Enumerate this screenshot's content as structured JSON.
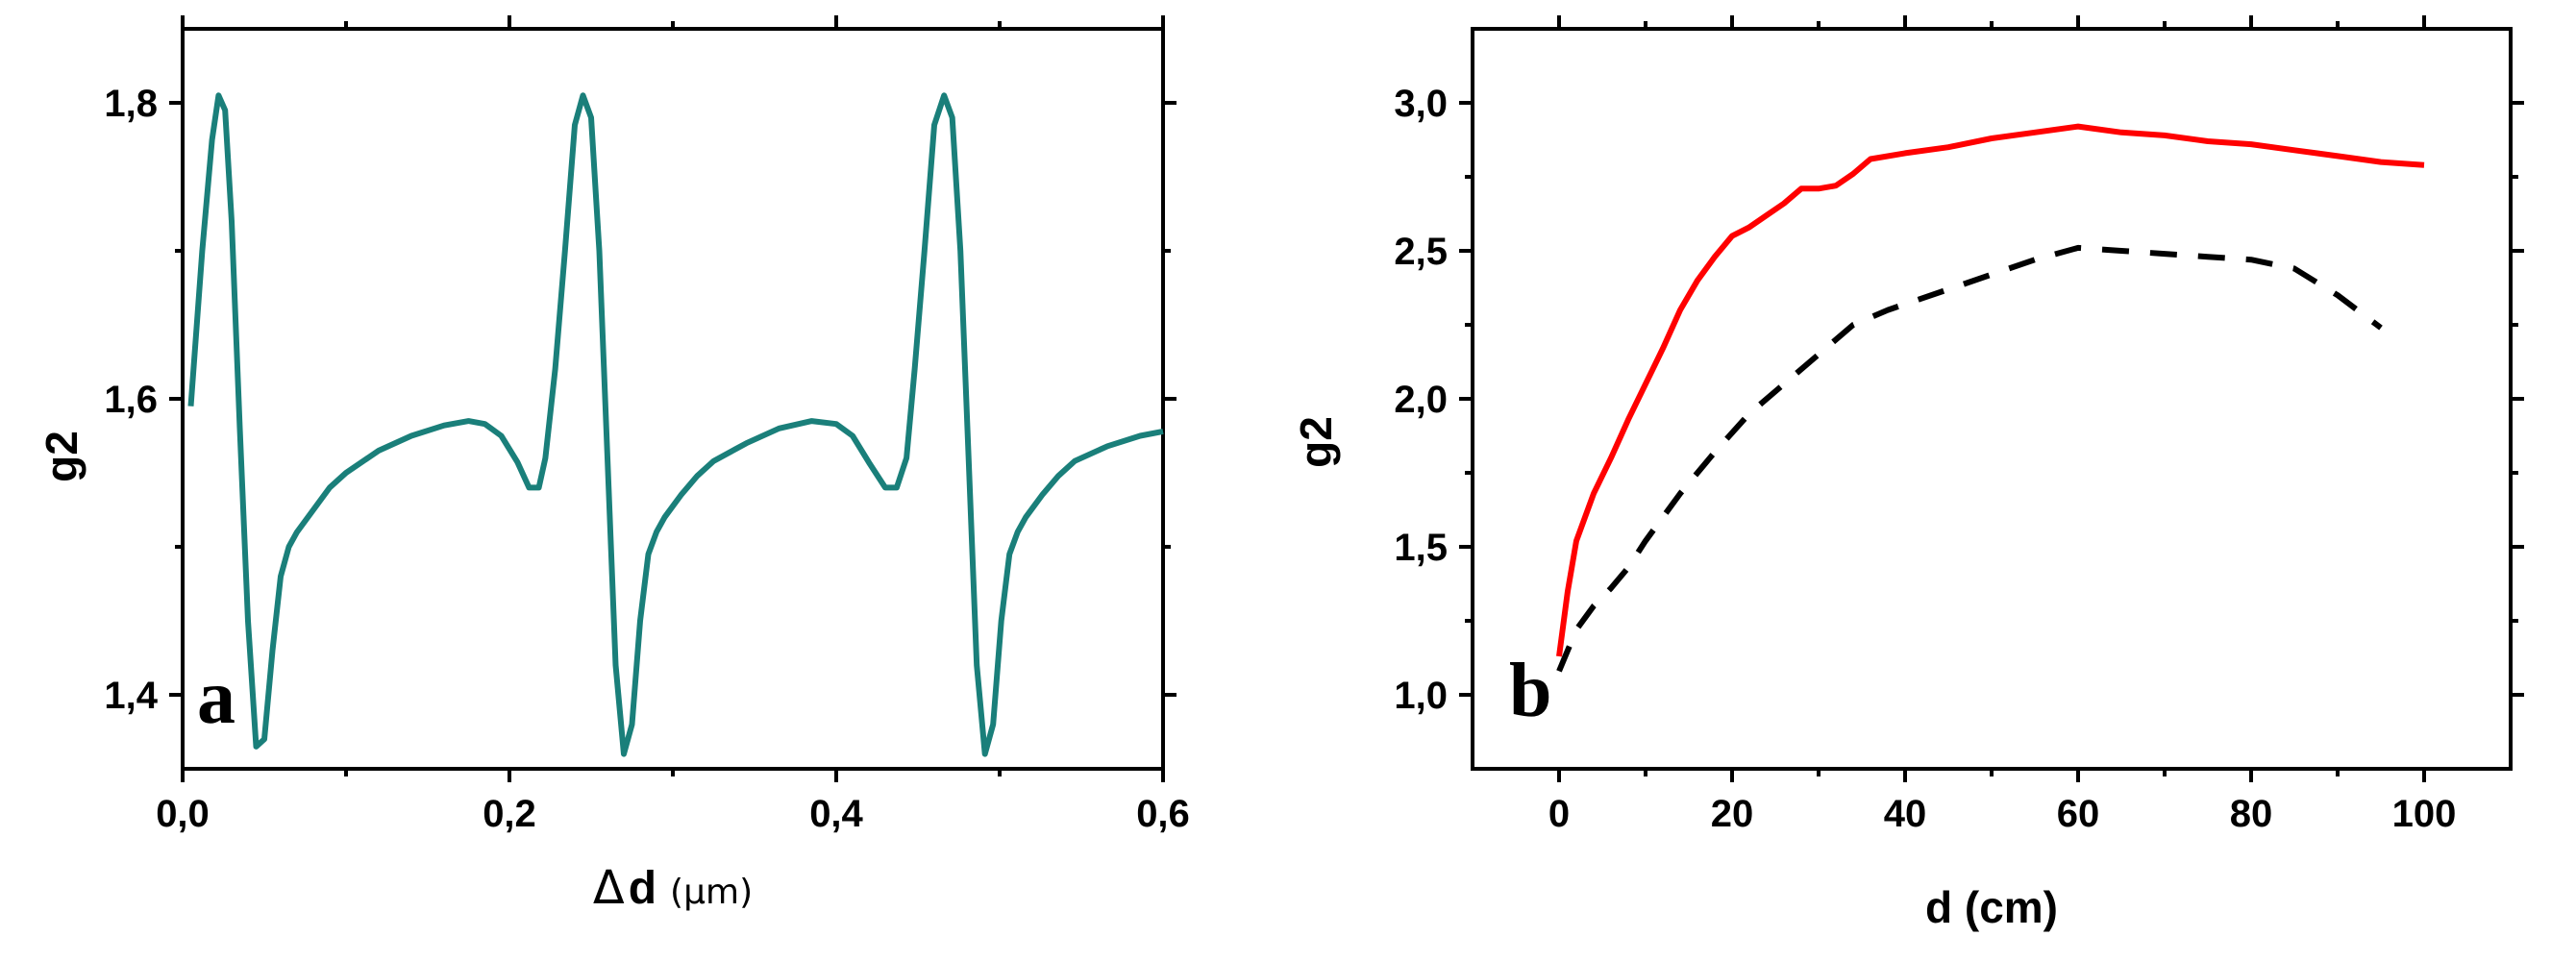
{
  "chart_data": [
    {
      "panel": "a",
      "type": "line",
      "xlabel_symbol": "Δ",
      "xlabel_var": "d",
      "xlabel_unit": "(μm)",
      "ylabel": "g2",
      "xlim": [
        0.0,
        0.6
      ],
      "ylim": [
        1.35,
        1.85
      ],
      "xticks": [
        0.0,
        0.2,
        0.4,
        0.6
      ],
      "xtick_labels": [
        "0,0",
        "0,2",
        "0,4",
        "0,6"
      ],
      "yticks": [
        1.4,
        1.6,
        1.8
      ],
      "ytick_labels": [
        "1,4",
        "1,6",
        "1,8"
      ],
      "color": "#1a7f7a",
      "series": [
        {
          "x": [
            0.005,
            0.012,
            0.018,
            0.022,
            0.026,
            0.03,
            0.035,
            0.04,
            0.045,
            0.05,
            0.055,
            0.06,
            0.065,
            0.07,
            0.08,
            0.09,
            0.1,
            0.12,
            0.14,
            0.16,
            0.175,
            0.185,
            0.195,
            0.205,
            0.212,
            0.218,
            0.222,
            0.228,
            0.234,
            0.24,
            0.245,
            0.25,
            0.255,
            0.26,
            0.265,
            0.27,
            0.275,
            0.28,
            0.285,
            0.29,
            0.295,
            0.305,
            0.315,
            0.325,
            0.345,
            0.365,
            0.385,
            0.4,
            0.41,
            0.42,
            0.43,
            0.437,
            0.443,
            0.448,
            0.454,
            0.46,
            0.466,
            0.471,
            0.476,
            0.481,
            0.486,
            0.491,
            0.496,
            0.501,
            0.506,
            0.511,
            0.516,
            0.526,
            0.536,
            0.546,
            0.566,
            0.586,
            0.6
          ],
          "y": [
            1.595,
            1.7,
            1.775,
            1.805,
            1.795,
            1.72,
            1.58,
            1.45,
            1.365,
            1.37,
            1.43,
            1.48,
            1.5,
            1.51,
            1.525,
            1.54,
            1.55,
            1.565,
            1.575,
            1.582,
            1.585,
            1.583,
            1.575,
            1.557,
            1.54,
            1.54,
            1.56,
            1.62,
            1.7,
            1.785,
            1.805,
            1.79,
            1.7,
            1.56,
            1.42,
            1.36,
            1.38,
            1.45,
            1.495,
            1.51,
            1.52,
            1.535,
            1.548,
            1.558,
            1.57,
            1.58,
            1.585,
            1.583,
            1.575,
            1.557,
            1.54,
            1.54,
            1.56,
            1.62,
            1.7,
            1.785,
            1.805,
            1.79,
            1.7,
            1.56,
            1.42,
            1.36,
            1.38,
            1.45,
            1.495,
            1.51,
            1.52,
            1.535,
            1.548,
            1.558,
            1.568,
            1.575,
            1.578
          ]
        }
      ]
    },
    {
      "panel": "b",
      "type": "line",
      "xlabel": "d (cm)",
      "ylabel": "g2",
      "xlim": [
        -10,
        110
      ],
      "ylim": [
        0.75,
        3.25
      ],
      "xticks": [
        0,
        20,
        40,
        60,
        80,
        100
      ],
      "xtick_labels": [
        "0",
        "20",
        "40",
        "60",
        "80",
        "100"
      ],
      "yticks": [
        1.0,
        1.5,
        2.0,
        2.5,
        3.0
      ],
      "ytick_labels": [
        "1,0",
        "1,5",
        "2,0",
        "2,5",
        "3,0"
      ],
      "series": [
        {
          "style": "solid",
          "color": "#ff0000",
          "x": [
            0,
            1,
            2,
            4,
            6,
            8,
            10,
            12,
            14,
            16,
            18,
            20,
            22,
            24,
            26,
            28,
            30,
            32,
            34,
            36,
            40,
            45,
            50,
            55,
            60,
            65,
            70,
            75,
            80,
            85,
            90,
            95,
            100
          ],
          "y": [
            1.13,
            1.35,
            1.52,
            1.68,
            1.8,
            1.93,
            2.05,
            2.17,
            2.3,
            2.4,
            2.48,
            2.55,
            2.58,
            2.62,
            2.66,
            2.71,
            2.71,
            2.72,
            2.76,
            2.81,
            2.83,
            2.85,
            2.88,
            2.9,
            2.92,
            2.9,
            2.89,
            2.87,
            2.86,
            2.84,
            2.82,
            2.8,
            2.79
          ]
        },
        {
          "style": "dashed",
          "color": "#000000",
          "x": [
            0,
            2,
            4,
            6,
            8,
            10,
            14,
            18,
            22,
            26,
            30,
            34,
            38,
            42,
            46,
            50,
            55,
            60,
            65,
            70,
            75,
            80,
            85,
            90,
            95
          ],
          "y": [
            1.08,
            1.22,
            1.3,
            1.36,
            1.43,
            1.52,
            1.68,
            1.82,
            1.95,
            2.05,
            2.15,
            2.25,
            2.3,
            2.34,
            2.38,
            2.42,
            2.47,
            2.51,
            2.5,
            2.49,
            2.48,
            2.47,
            2.44,
            2.35,
            2.24
          ]
        }
      ]
    }
  ]
}
